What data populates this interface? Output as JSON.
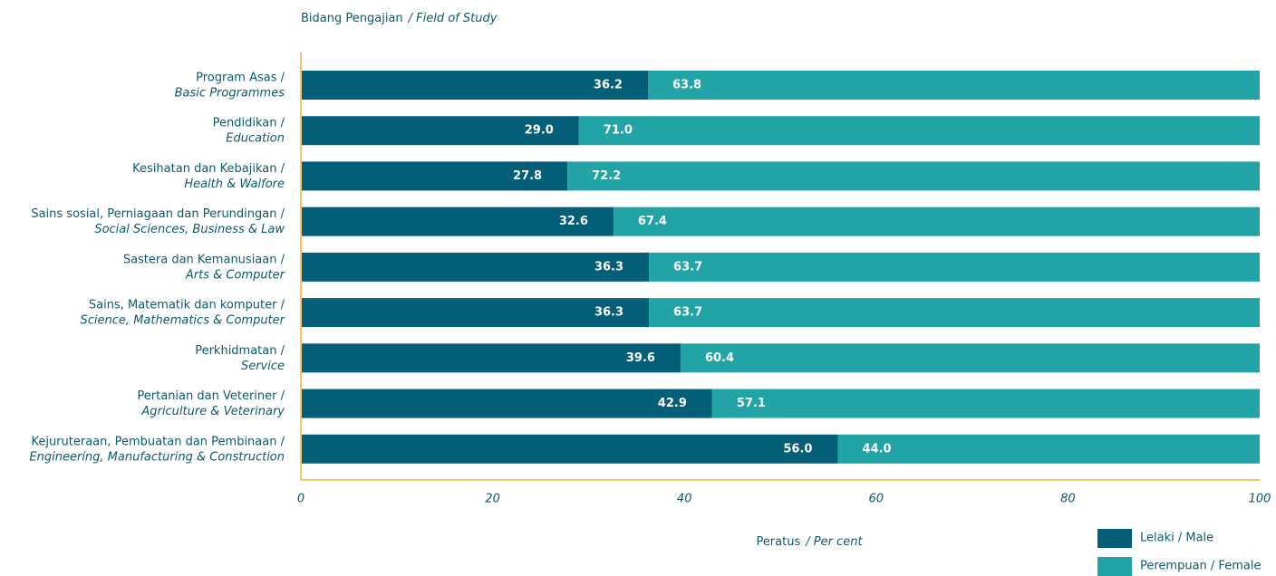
{
  "chart_data": {
    "type": "stacked_bar_horizontal",
    "title": [
      "Bidang Pengajian",
      "/ Field of Study"
    ],
    "xlabel": [
      "Peratus",
      "/ Per cent"
    ],
    "categories": [
      [
        "Program Asas /",
        "Basic Programmes"
      ],
      [
        "Pendidikan /",
        "Education"
      ],
      [
        "Kesihatan dan Kebajikan /",
        "Health & Walfore"
      ],
      [
        "Sains sosial, Perniagaan dan Perundingan /",
        "Social Sciences, Business & Law"
      ],
      [
        "Sastera dan Kemanusiaan /",
        "Arts & Computer"
      ],
      [
        "Sains, Matematik dan komputer /",
        "Science, Mathematics & Computer"
      ],
      [
        "Perkhidmatan /",
        "Service"
      ],
      [
        "Pertanian dan Veteriner /",
        "Agriculture & Veterinary"
      ],
      [
        "Kejuruteraan, Pembuatan dan Pembinaan /",
        "Engineering, Manufacturing & Construction"
      ]
    ],
    "series": [
      {
        "name": "Lelaki / Male",
        "color": "#035f78",
        "values": [
          36.2,
          29,
          27.8,
          32.6,
          36.3,
          36.3,
          39.6,
          42.9,
          56
        ],
        "value_labels": [
          "36.2",
          "29.0",
          "27.8",
          "32.6",
          "36.3",
          "36.3",
          "39.6",
          "42.9",
          "56.0"
        ]
      },
      {
        "name": "Perempuan / Female",
        "color": "#22a4a7",
        "values": [
          63.8,
          71,
          72.2,
          67.4,
          63.7,
          63.7,
          60.4,
          57.1,
          44
        ],
        "value_labels": [
          "63.8",
          "71.0",
          "72.2",
          "67.4",
          "63.7",
          "63.7",
          "60.4",
          "57.1",
          "44.0"
        ]
      }
    ],
    "xlim": [
      0,
      100
    ],
    "xticks": [
      0,
      20,
      40,
      60,
      80,
      100
    ],
    "axis_color": "#f6c46c"
  }
}
